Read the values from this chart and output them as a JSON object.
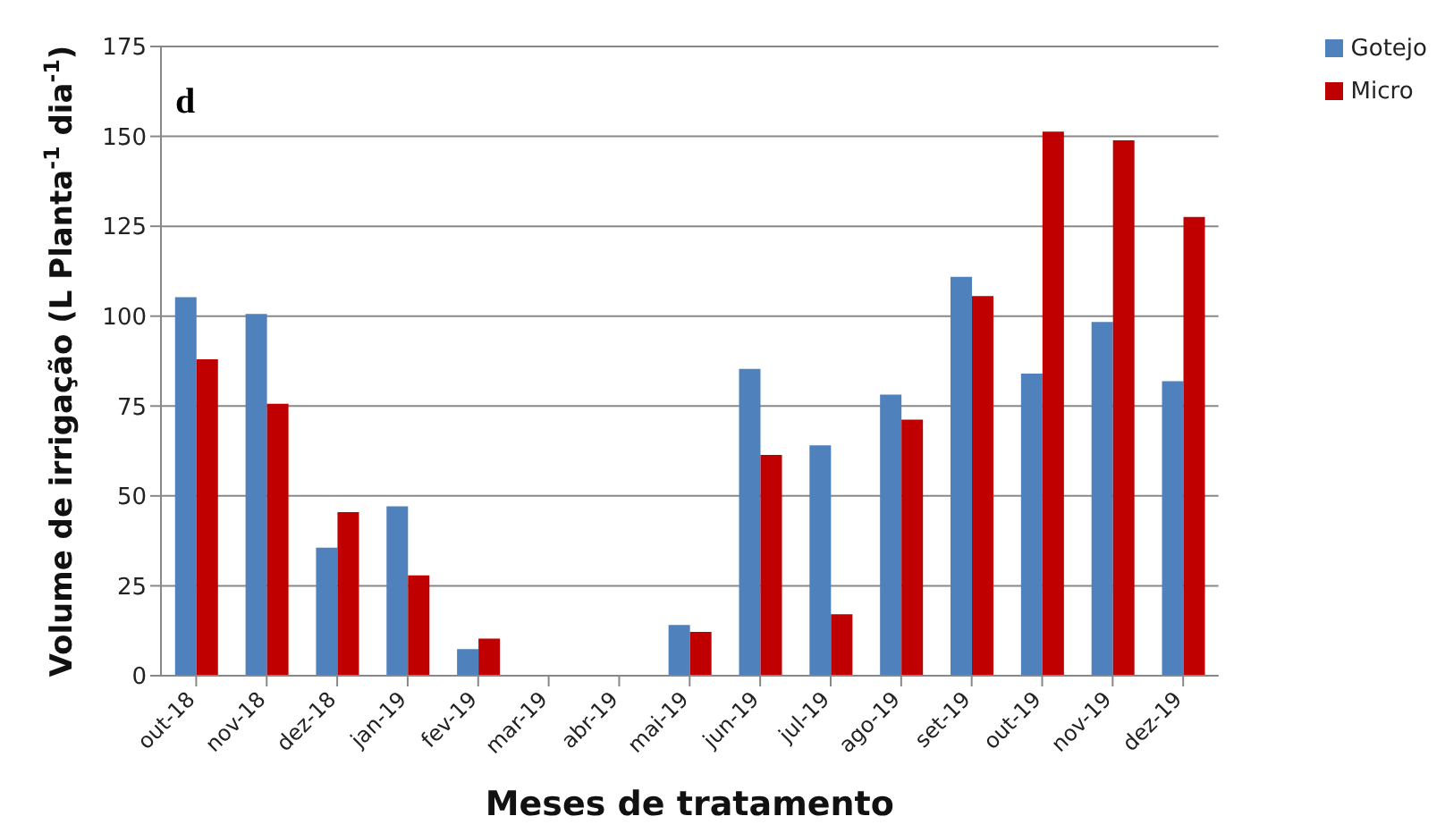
{
  "chart_data": {
    "type": "bar",
    "xlabel": "Meses de tratamento",
    "ylabel": "Volume de irrigação (L Planta$^{-1}$ dia$^{-1}$)",
    "annotations": [
      "d"
    ],
    "categories": [
      "out-18",
      "nov-18",
      "dez-18",
      "jan-19",
      "fev-19",
      "mar-19",
      "abr-19",
      "mai-19",
      "jun-19",
      "jul-19",
      "ago-19",
      "set-19",
      "out-19",
      "nov-19",
      "dez-19"
    ],
    "series": [
      {
        "name": "Gotejo",
        "color": "#4f81bd",
        "values": [
          105.3,
          100.6,
          35.6,
          47.1,
          7.4,
          0,
          0,
          14.1,
          85.3,
          64.1,
          78.2,
          110.9,
          84.0,
          98.4,
          81.9
        ]
      },
      {
        "name": "Micro",
        "color": "#c00000",
        "values": [
          88.0,
          75.6,
          45.5,
          27.9,
          10.3,
          0,
          0,
          12.2,
          61.4,
          17.1,
          71.2,
          105.6,
          151.3,
          148.9,
          127.6
        ]
      }
    ],
    "ylim": [
      0,
      175
    ],
    "yticks": [
      0,
      25,
      50,
      75,
      100,
      125,
      150,
      175
    ],
    "grid": "y",
    "legend": "top right"
  }
}
